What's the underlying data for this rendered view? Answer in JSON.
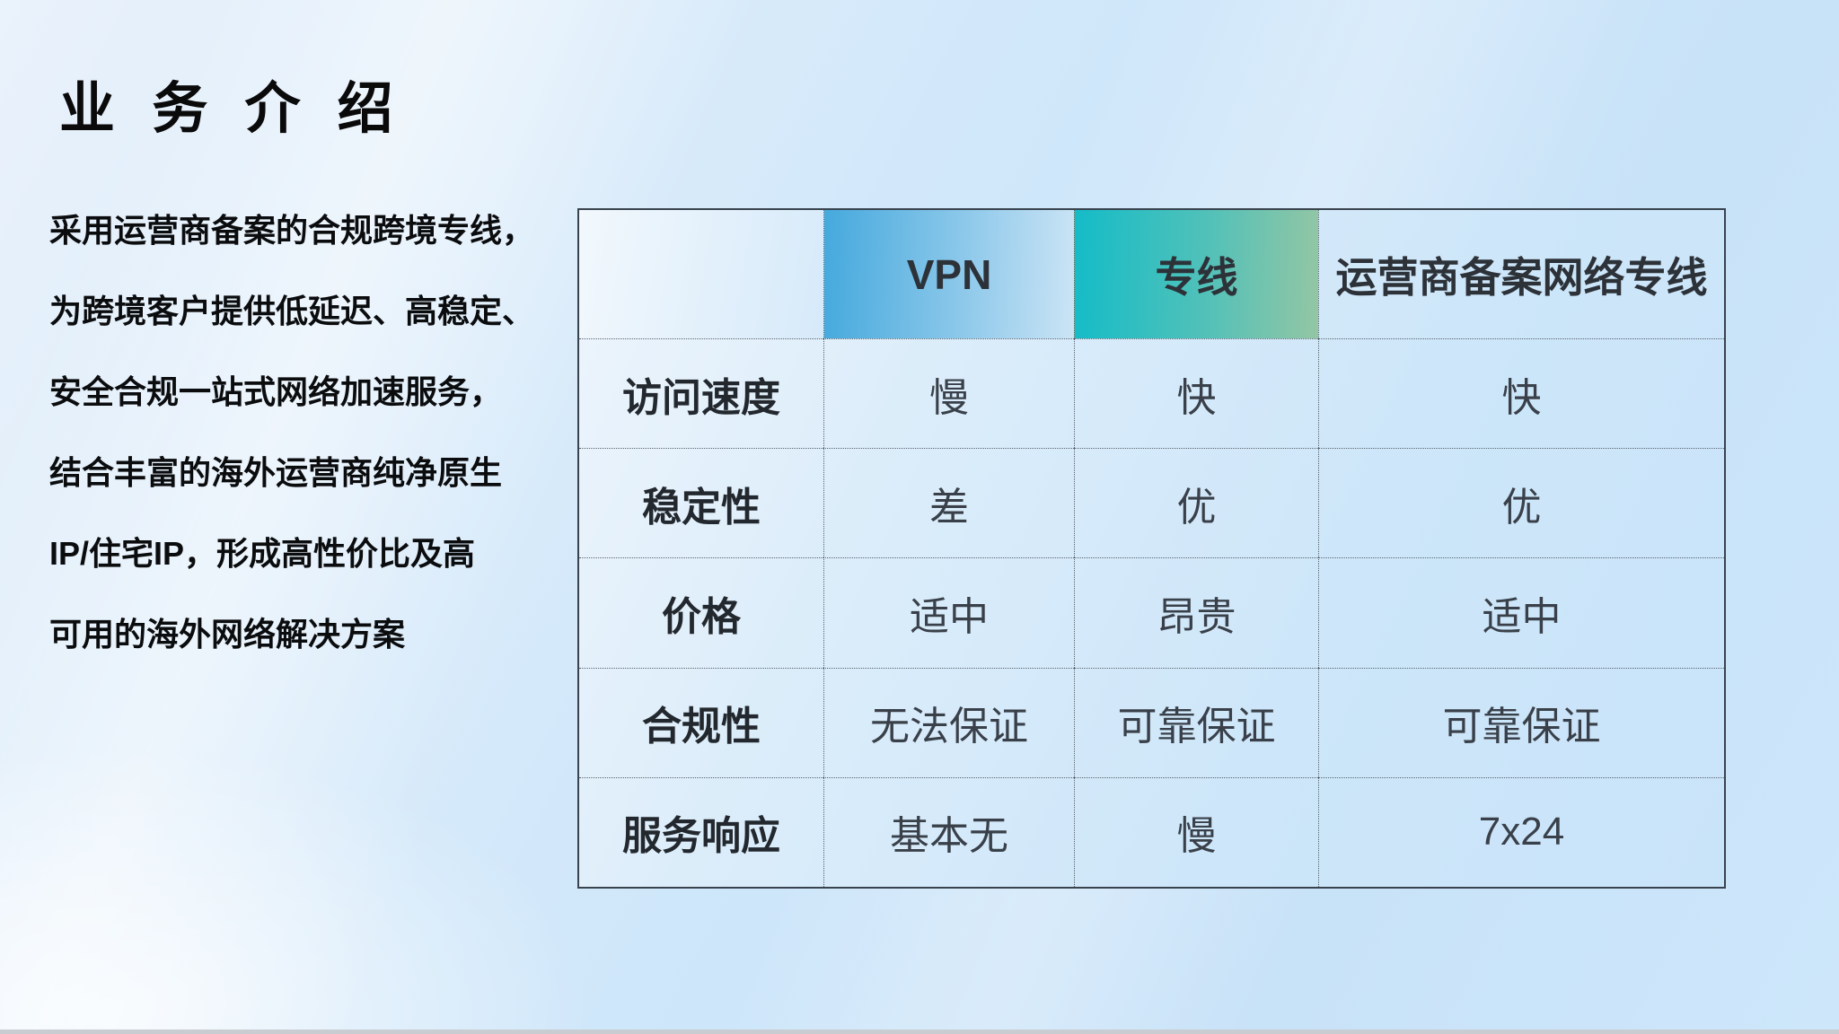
{
  "header": {
    "title": "业 务 介 绍"
  },
  "intro": {
    "lines": [
      "采用运营商备案的合规跨境专线，",
      "为跨境客户提供低延迟、高稳定、",
      "安全合规一站式网络加速服务，",
      "结合丰富的海外运营商纯净原生",
      "IP/住宅IP，形成高性价比及高",
      "可用的海外网络解决方案"
    ]
  },
  "table": {
    "columns": [
      "",
      "VPN",
      "专线",
      "运营商备案网络专线"
    ],
    "rows": [
      {
        "label": "访问速度",
        "values": [
          "慢",
          "快",
          "快"
        ]
      },
      {
        "label": "稳定性",
        "values": [
          "差",
          "优",
          "优"
        ]
      },
      {
        "label": "价格",
        "values": [
          "适中",
          "昂贵",
          "适中"
        ]
      },
      {
        "label": "合规性",
        "values": [
          "无法保证",
          "可靠保证",
          "可靠保证"
        ]
      },
      {
        "label": "服务响应",
        "values": [
          "基本无",
          "慢",
          "7x24"
        ]
      }
    ],
    "header_colors": {
      "vpn_start": "#45a9dd",
      "vpn_end": "#cbe4f5",
      "line_start": "#14bcc8",
      "line_end": "#93c6a4",
      "carrier_start": "#5364b0",
      "carrier_end": "#bac5e2"
    },
    "border_color": "#39434e",
    "background_color": "#cde6f9"
  }
}
